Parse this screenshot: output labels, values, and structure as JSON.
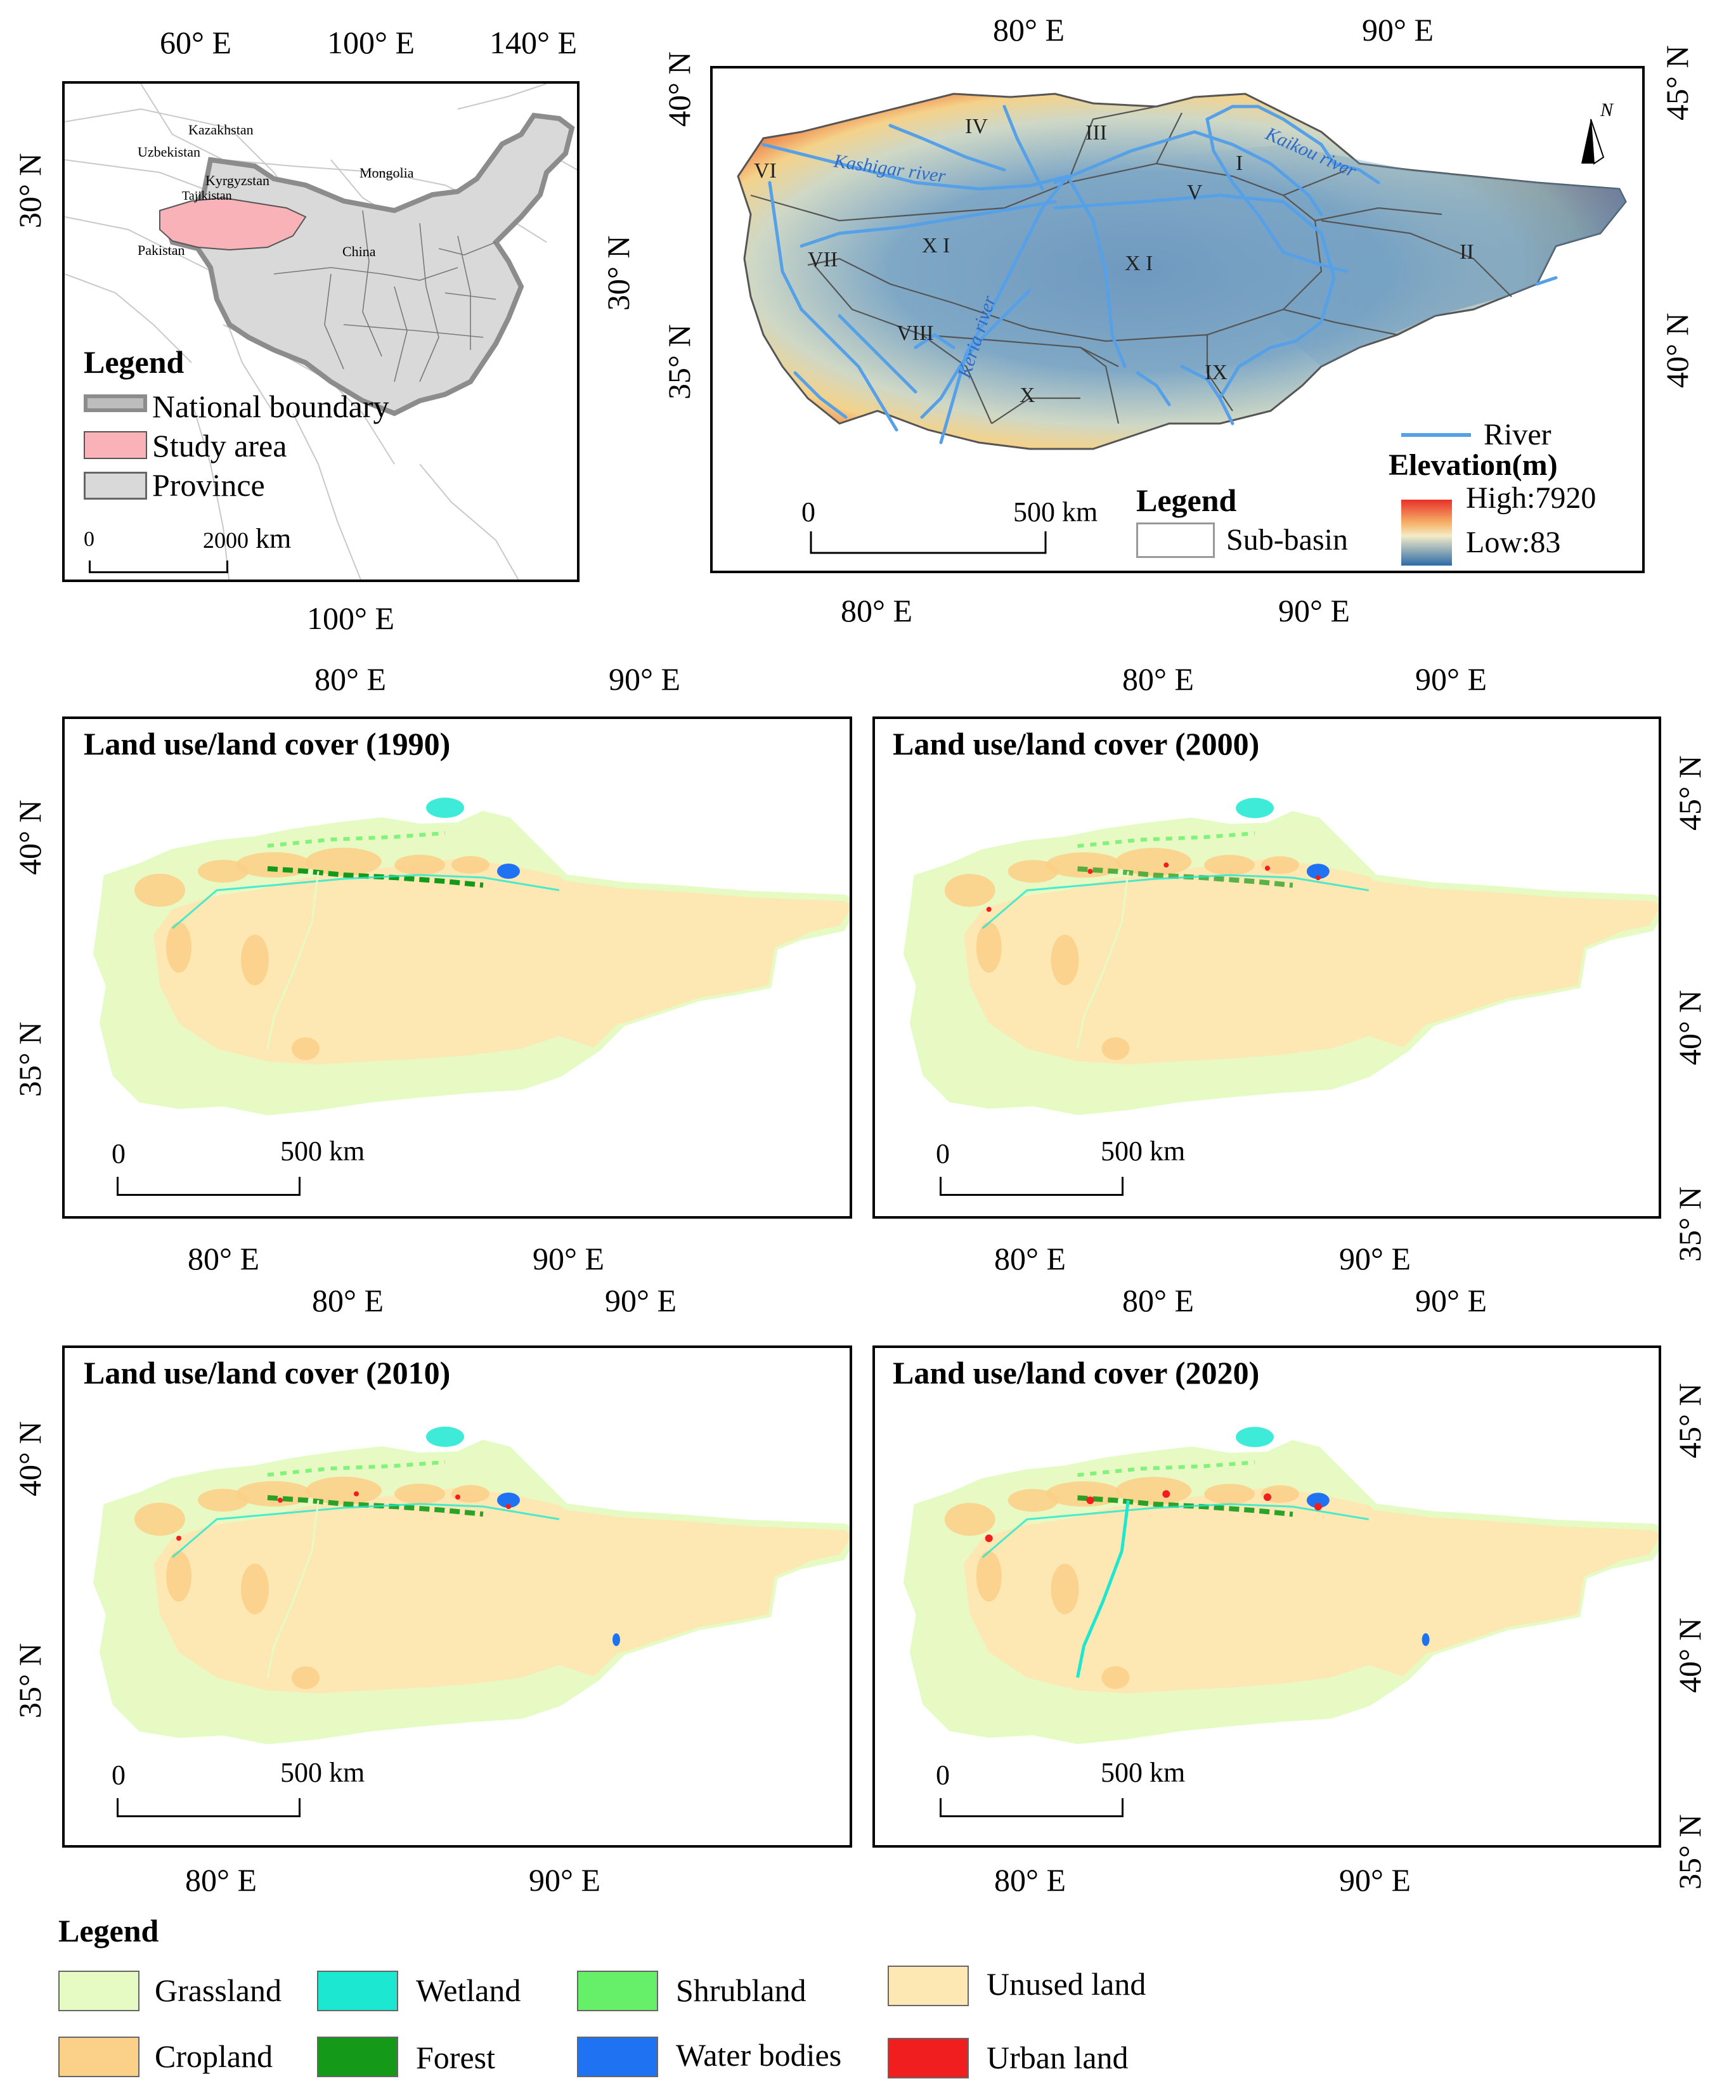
{
  "overview_map": {
    "top_ticks": [
      "60° E",
      "100° E",
      "140° E"
    ],
    "bottom_tick": "100° E",
    "left_tick": "30° N",
    "right_tick": "30° N",
    "countries": [
      "Kazakhstan",
      "Uzbekistan",
      "Kyrgyzstan",
      "Tajikistan",
      "Mongolia",
      "Pakistan",
      "China"
    ],
    "legend_title": "Legend",
    "legend_items": [
      "National boundary",
      "Study area",
      "Province"
    ],
    "scale_zero": "0",
    "scale_end": "2000",
    "scale_unit": "km"
  },
  "elevation_map": {
    "top_ticks": [
      "80° E",
      "90° E"
    ],
    "bottom_ticks": [
      "80° E",
      "90° E"
    ],
    "left_ticks": [
      "40° N",
      "35° N"
    ],
    "right_ticks": [
      "45° N",
      "40° N"
    ],
    "sub_basins": [
      "I",
      "II",
      "III",
      "IV",
      "V",
      "VI",
      "VII",
      "VIII",
      "IX",
      "X",
      "X I",
      "X I"
    ],
    "rivers": [
      "Kashigar river",
      "Kaikou river",
      "Keria river"
    ],
    "north_label": "N",
    "legend_title": "Legend",
    "legend_subbasin": "Sub-basin",
    "legend_river": "River",
    "elevation_title": "Elevation(m)",
    "elevation_high": "High:7920",
    "elevation_low": "Low:83",
    "scale_zero": "0",
    "scale_end": "500 km"
  },
  "lulc_maps": [
    {
      "title": "Land use/land cover (1990)",
      "top_ticks": [
        "80° E",
        "90° E"
      ],
      "bottom_ticks": [
        "80° E",
        "90° E"
      ],
      "left_ticks": [
        "40° N",
        "35° N"
      ],
      "scale_zero": "0",
      "scale_end": "500 km"
    },
    {
      "title": "Land use/land cover (2000)",
      "top_ticks": [
        "80° E",
        "90° E"
      ],
      "bottom_ticks": [
        "80° E",
        "90° E"
      ],
      "right_ticks": [
        "45° N",
        "40° N",
        "35° N"
      ],
      "scale_zero": "0",
      "scale_end": "500 km"
    },
    {
      "title": "Land use/land cover (2010)",
      "top_ticks": [
        "80° E",
        "90° E"
      ],
      "bottom_ticks": [
        "80° E",
        "90° E"
      ],
      "left_ticks": [
        "40° N",
        "35° N"
      ],
      "scale_zero": "0",
      "scale_end": "500 km"
    },
    {
      "title": "Land use/land cover (2020)",
      "top_ticks": [
        "80° E",
        "90° E"
      ],
      "bottom_ticks": [
        "80° E",
        "90° E"
      ],
      "right_ticks": [
        "45° N",
        "40° N",
        "35° N"
      ],
      "scale_zero": "0",
      "scale_end": "500 km"
    }
  ],
  "legend": {
    "title": "Legend",
    "items": [
      {
        "label": "Grassland",
        "color": "#e6fbc4"
      },
      {
        "label": "Wetland",
        "color": "#1ce8d2"
      },
      {
        "label": "Shrubland",
        "color": "#66f06a"
      },
      {
        "label": "Unused land",
        "color": "#fde8b3"
      },
      {
        "label": "Cropland",
        "color": "#fbd089"
      },
      {
        "label": "Forest",
        "color": "#149a18"
      },
      {
        "label": "Water bodies",
        "color": "#1f73f2"
      },
      {
        "label": "Urban land",
        "color": "#f01e1e"
      }
    ]
  },
  "colors": {
    "study_area": "#f9b3b8",
    "province": "#d9d9d9",
    "river": "#56a0e8",
    "elevation_high": "#e8312a",
    "elevation_low": "#2d6aa8"
  }
}
